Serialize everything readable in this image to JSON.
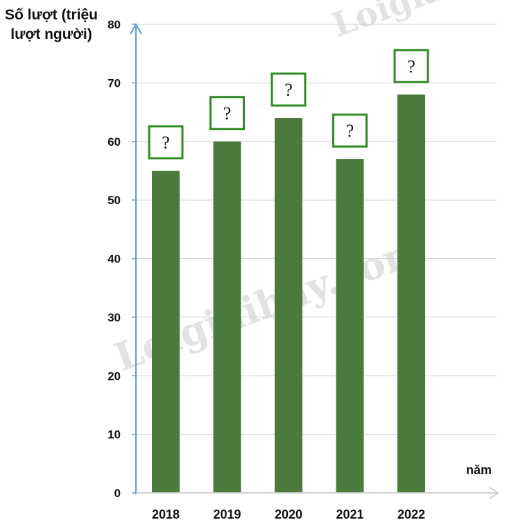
{
  "chart_data": {
    "type": "bar",
    "ylabel": "Số lượt (triệu lượt người)",
    "xlabel": "năm",
    "categories": [
      "2018",
      "2019",
      "2020",
      "2021",
      "2022"
    ],
    "values": [
      55,
      60,
      64,
      57,
      68
    ],
    "ylim": [
      0,
      80
    ],
    "yticks": [
      0,
      10,
      20,
      30,
      40,
      50,
      60,
      70,
      80
    ],
    "data_labels": [
      "?",
      "?",
      "?",
      "?",
      "?"
    ],
    "grid": true,
    "legend": "none"
  },
  "watermarks": [
    "Loigiaihay.com",
    "Loigia"
  ],
  "colors": {
    "bar": "#4a7b3c",
    "label_box": "#2e8b22",
    "grid": "#d0d0d0",
    "axis": "#5b9bd5",
    "text": "#111111"
  }
}
